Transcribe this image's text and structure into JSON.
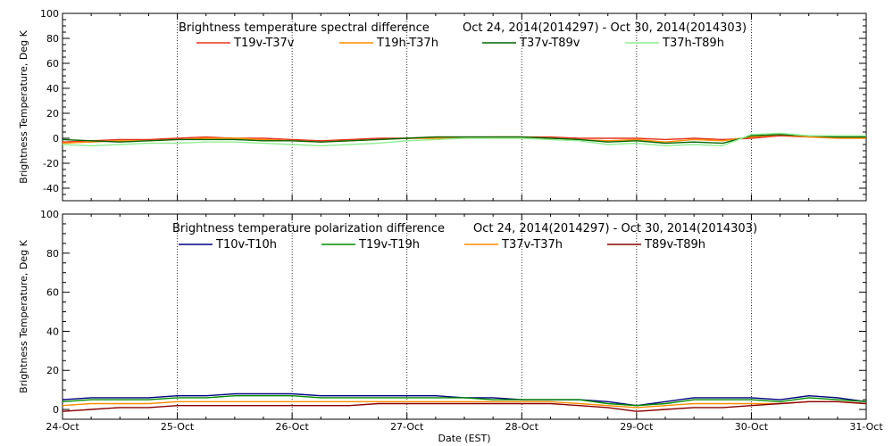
{
  "chart_data": [
    {
      "type": "line",
      "title": "Brightness temperature spectral difference",
      "date_range": "Oct 24, 2014(2014297) - Oct 30, 2014(2014303)",
      "xlabel": "",
      "ylabel": "Brightness Temperature, Deg K",
      "ylim": [
        -50,
        100
      ],
      "yticks": [
        "-40",
        "-20",
        "0",
        "20",
        "40",
        "60",
        "80",
        "100"
      ],
      "x_categories": [
        "24-Oct",
        "25-Oct",
        "26-Oct",
        "27-Oct",
        "28-Oct",
        "29-Oct",
        "30-Oct",
        "31-Oct"
      ],
      "grid": "vertical dotted at each day",
      "legend_position": "top",
      "series": [
        {
          "name": "T19v-T37v",
          "color": "#e8321e",
          "x": [
            0,
            0.25,
            0.5,
            0.75,
            1,
            1.25,
            1.5,
            1.75,
            2,
            2.25,
            2.5,
            2.75,
            3,
            3.25,
            3.5,
            3.75,
            4,
            4.25,
            4.5,
            4.75,
            5,
            5.25,
            5.5,
            5.75,
            6,
            6.25,
            6.5,
            6.75,
            7
          ],
          "y": [
            -3,
            -2,
            -1,
            -1,
            0,
            1,
            0,
            0,
            -1,
            -2,
            -1,
            0,
            0,
            1,
            1,
            1,
            1,
            1,
            0,
            0,
            0,
            -1,
            0,
            -1,
            0,
            2,
            1,
            1,
            1
          ]
        },
        {
          "name": "T19h-T37h",
          "color": "#ff8c00",
          "x": [
            0,
            0.25,
            0.5,
            0.75,
            1,
            1.25,
            1.5,
            1.75,
            2,
            2.25,
            2.5,
            2.75,
            3,
            3.25,
            3.5,
            3.75,
            4,
            4.25,
            4.5,
            4.75,
            5,
            5.25,
            5.5,
            5.75,
            6,
            6.25,
            6.5,
            6.75,
            7
          ],
          "y": [
            -4,
            -3,
            -2,
            -2,
            -1,
            0,
            0,
            -1,
            -2,
            -3,
            -2,
            -1,
            0,
            0,
            0,
            1,
            1,
            0,
            -1,
            -2,
            -1,
            -3,
            -1,
            -2,
            1,
            3,
            1,
            0,
            0
          ]
        },
        {
          "name": "T37v-T89v",
          "color": "#006400",
          "x": [
            0,
            0.25,
            0.5,
            0.75,
            1,
            1.25,
            1.5,
            1.75,
            2,
            2.25,
            2.5,
            2.75,
            3,
            3.25,
            3.5,
            3.75,
            4,
            4.25,
            4.5,
            4.75,
            5,
            5.25,
            5.5,
            5.75,
            6,
            6.25,
            6.5,
            6.75,
            7
          ],
          "y": [
            -1,
            -2,
            -3,
            -2,
            -1,
            -1,
            -1,
            -2,
            -2,
            -3,
            -2,
            -1,
            0,
            1,
            1,
            1,
            1,
            0,
            -1,
            -3,
            -2,
            -4,
            -3,
            -4,
            2,
            3,
            2,
            1,
            1
          ]
        },
        {
          "name": "T37h-T89h",
          "color": "#90ee90",
          "x": [
            0,
            0.25,
            0.5,
            0.75,
            1,
            1.25,
            1.5,
            1.75,
            2,
            2.25,
            2.5,
            2.75,
            3,
            3.25,
            3.5,
            3.75,
            4,
            4.25,
            4.5,
            4.75,
            5,
            5.25,
            5.5,
            5.75,
            6,
            6.25,
            6.5,
            6.75,
            7
          ],
          "y": [
            -5,
            -6,
            -5,
            -4,
            -4,
            -3,
            -3,
            -4,
            -5,
            -6,
            -5,
            -4,
            -2,
            -1,
            0,
            0,
            0,
            -1,
            -2,
            -5,
            -4,
            -6,
            -5,
            -6,
            3,
            4,
            2,
            2,
            2
          ]
        }
      ]
    },
    {
      "type": "line",
      "title": "Brightness temperature polarization difference",
      "date_range": "Oct 24, 2014(2014297) - Oct 30, 2014(2014303)",
      "xlabel": "Date (EST)",
      "ylabel": "Brightness Temperature, Deg K",
      "ylim": [
        -5,
        100
      ],
      "yticks": [
        "0",
        "20",
        "40",
        "60",
        "80",
        "100"
      ],
      "x_categories": [
        "24-Oct",
        "25-Oct",
        "26-Oct",
        "27-Oct",
        "28-Oct",
        "29-Oct",
        "30-Oct",
        "31-Oct"
      ],
      "grid": "vertical dotted at each day",
      "legend_position": "top",
      "series": [
        {
          "name": "T10v-T10h",
          "color": "#000080",
          "x": [
            0,
            0.25,
            0.5,
            0.75,
            1,
            1.25,
            1.5,
            1.75,
            2,
            2.25,
            2.5,
            2.75,
            3,
            3.25,
            3.5,
            3.75,
            4,
            4.25,
            4.5,
            4.75,
            5,
            5.25,
            5.5,
            5.75,
            6,
            6.25,
            6.5,
            6.75,
            7
          ],
          "y": [
            5,
            6,
            6,
            6,
            7,
            7,
            8,
            8,
            8,
            7,
            7,
            7,
            7,
            7,
            6,
            6,
            5,
            5,
            5,
            4,
            2,
            4,
            6,
            6,
            6,
            5,
            7,
            6,
            4
          ]
        },
        {
          "name": "T19v-T19h",
          "color": "#008c00",
          "x": [
            0,
            0.25,
            0.5,
            0.75,
            1,
            1.25,
            1.5,
            1.75,
            2,
            2.25,
            2.5,
            2.75,
            3,
            3.25,
            3.5,
            3.75,
            4,
            4.25,
            4.5,
            4.75,
            5,
            5.25,
            5.5,
            5.75,
            6,
            6.25,
            6.5,
            6.75,
            7
          ],
          "y": [
            4,
            5,
            5,
            5,
            6,
            6,
            7,
            7,
            7,
            6,
            6,
            6,
            6,
            6,
            6,
            5,
            5,
            5,
            5,
            3,
            2,
            3,
            5,
            5,
            5,
            4,
            6,
            5,
            4
          ]
        },
        {
          "name": "T37v-T37h",
          "color": "#ff8c00",
          "x": [
            0,
            0.25,
            0.5,
            0.75,
            1,
            1.25,
            1.5,
            1.75,
            2,
            2.25,
            2.5,
            2.75,
            3,
            3.25,
            3.5,
            3.75,
            4,
            4.25,
            4.5,
            4.75,
            5,
            5.25,
            5.5,
            5.75,
            6,
            6.25,
            6.5,
            6.75,
            7
          ],
          "y": [
            2,
            3,
            3,
            3,
            4,
            4,
            4,
            4,
            4,
            4,
            4,
            4,
            4,
            4,
            4,
            4,
            4,
            4,
            3,
            2,
            1,
            2,
            3,
            3,
            3,
            3,
            4,
            4,
            3
          ]
        },
        {
          "name": "T89v-T89h",
          "color": "#8b0000",
          "x": [
            0,
            0.25,
            0.5,
            0.75,
            1,
            1.25,
            1.5,
            1.75,
            2,
            2.25,
            2.5,
            2.75,
            3,
            3.25,
            3.5,
            3.75,
            4,
            4.25,
            4.5,
            4.75,
            5,
            5.25,
            5.5,
            5.75,
            6,
            6.25,
            6.5,
            6.75,
            7
          ],
          "y": [
            -1,
            0,
            1,
            1,
            2,
            2,
            2,
            2,
            2,
            2,
            2,
            3,
            3,
            3,
            3,
            3,
            3,
            3,
            2,
            1,
            -1,
            0,
            1,
            1,
            2,
            3,
            4,
            4,
            3
          ]
        }
      ]
    }
  ]
}
